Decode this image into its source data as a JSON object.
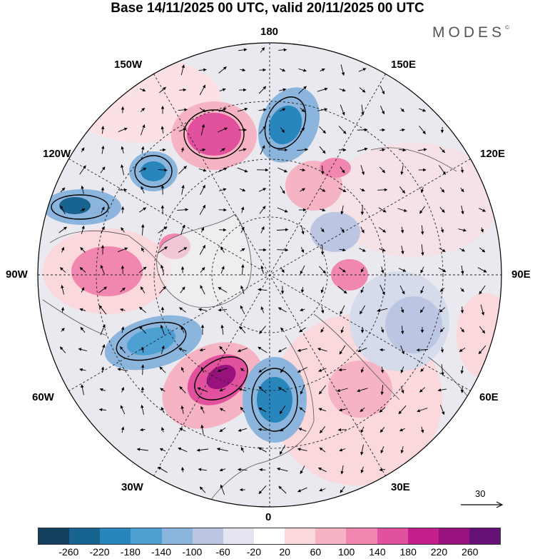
{
  "title": "Base 14/11/2025 00 UTC, valid 20/11/2025 00 UTC",
  "brand": {
    "text": "MODES",
    "mark": "©"
  },
  "longitude_labels": {
    "top": "180",
    "upper_left": "150W",
    "upper_right": "150E",
    "mid_upper_left": "120W",
    "mid_upper_right": "120E",
    "left": "90W",
    "right": "90E",
    "mid_lower_left": "60W",
    "mid_lower_right": "60E",
    "lower_left": "30W",
    "lower_right": "30E",
    "bottom": "0"
  },
  "reference_vector": {
    "label": "30"
  },
  "colorbar": {
    "colors": [
      "#123f5e",
      "#16648f",
      "#2886bd",
      "#4b9fd1",
      "#8bb5dc",
      "#bcc6e3",
      "#e4e4f0",
      "#ffffff",
      "#fbd8dc",
      "#f6b3c3",
      "#f186b0",
      "#e2519e",
      "#c41e8a",
      "#98127d",
      "#651178"
    ],
    "tick_labels": [
      "-260",
      "-220",
      "-180",
      "-140",
      "-100",
      "-60",
      "-20",
      "20",
      "60",
      "100",
      "140",
      "180",
      "220",
      "260"
    ]
  },
  "map_colors": {
    "background": "#e9e9ef",
    "land": "#f2f2f2",
    "coast": "#555555",
    "grid": "#222222"
  }
}
